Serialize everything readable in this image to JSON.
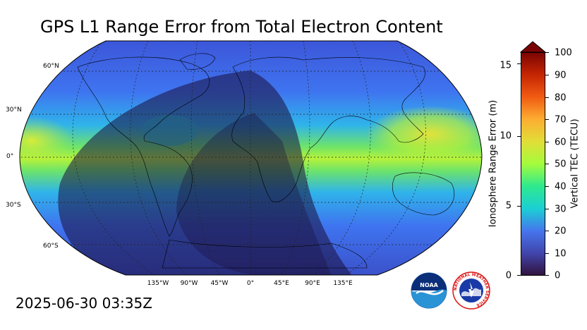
{
  "title": "GPS L1 Range Error from Total Electron Content",
  "timestamp": "2025-06-30 03:35Z",
  "map": {
    "projection": "Robinson",
    "lat_labels": [
      "60°N",
      "30°N",
      "0°",
      "30°S",
      "60°S"
    ],
    "lon_labels": [
      "135°W",
      "90°W",
      "45°W",
      "0°",
      "45°E",
      "90°E",
      "135°E"
    ],
    "night_shading": true,
    "gridlines": "dotted"
  },
  "colorbar": {
    "right_label": "Vertical TEC (TECU)",
    "left_label": "Ionosphere Range Error (m)",
    "right_ticks": [
      "0",
      "10",
      "20",
      "30",
      "40",
      "50",
      "60",
      "70",
      "80",
      "90",
      "100"
    ],
    "left_ticks": [
      "0",
      "5",
      "10",
      "15"
    ],
    "range_tecu": [
      0,
      100
    ],
    "extend": "max"
  },
  "logos": {
    "noaa_text": "NOAA",
    "nws_text": "NATIONAL WEATHER SERVICE"
  }
}
